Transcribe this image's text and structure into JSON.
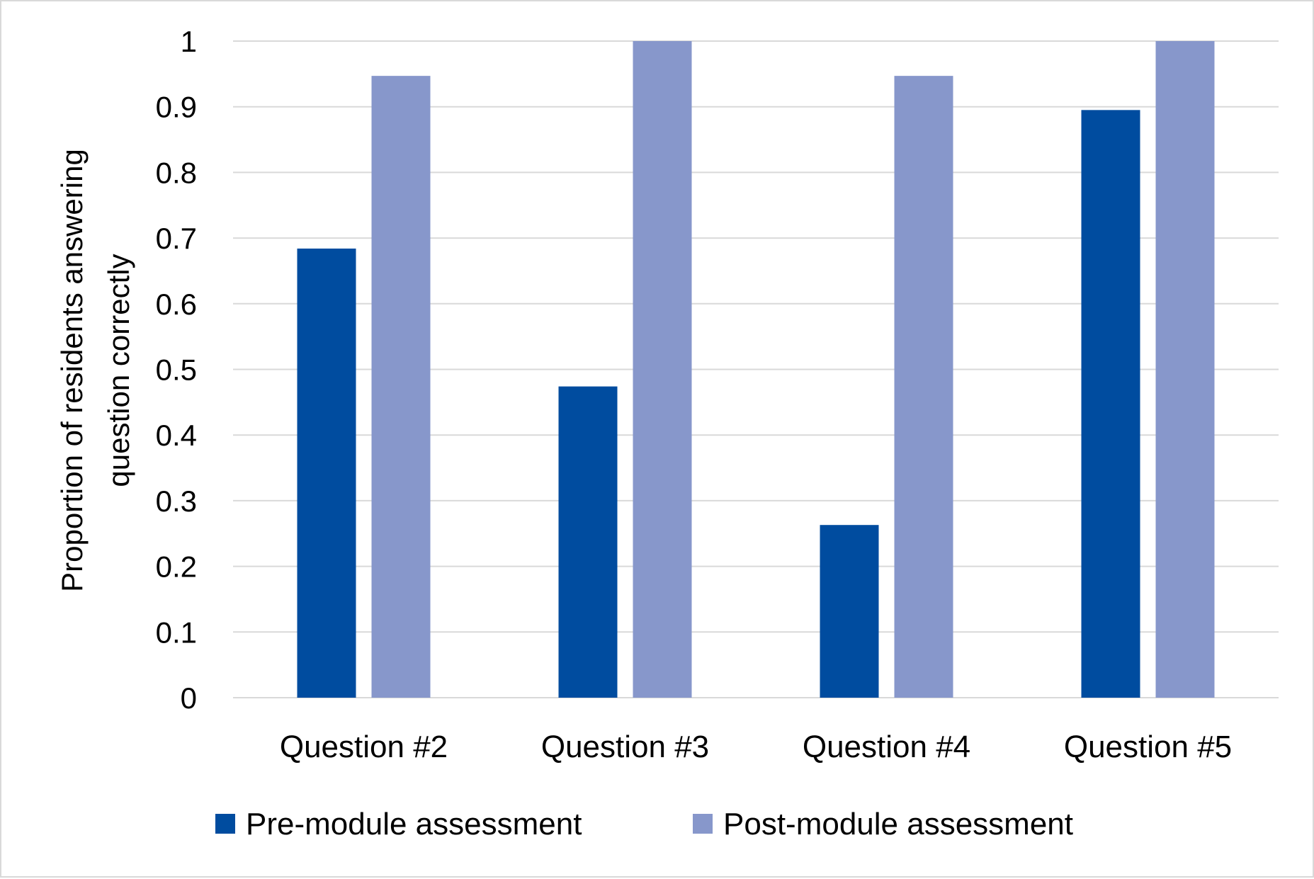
{
  "chart_data": {
    "type": "bar",
    "title": "",
    "xlabel": "",
    "ylabel_lines": [
      "Proportion of residents answering",
      "question correctly"
    ],
    "categories": [
      "Question #2",
      "Question #3",
      "Question #4",
      "Question #5"
    ],
    "series": [
      {
        "name": "Pre-module assessment",
        "color": "#004c9f",
        "values": [
          0.684,
          0.474,
          0.263,
          0.895
        ]
      },
      {
        "name": "Post-module assessment",
        "color": "#8797cb",
        "values": [
          0.947,
          1.0,
          0.947,
          1.0
        ]
      }
    ],
    "ylim": [
      0,
      1
    ],
    "yticks": [
      "0",
      "0.1",
      "0.2",
      "0.3",
      "0.4",
      "0.5",
      "0.6",
      "0.7",
      "0.8",
      "0.9",
      "1"
    ],
    "grid": true,
    "legend_position": "bottom"
  }
}
